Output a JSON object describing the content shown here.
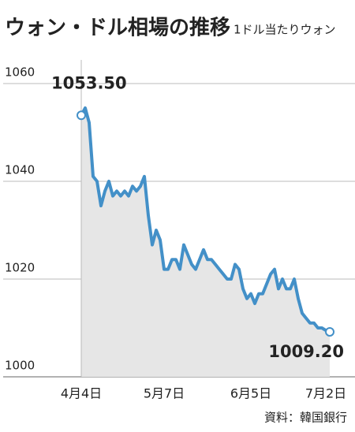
{
  "chart_data": {
    "type": "line",
    "title": "ウォン・ドル相場の推移",
    "subtitle": "1ドル当たりウォン",
    "source": "資料：韓国銀行",
    "categories": [
      "4月4日",
      null,
      null,
      null,
      null,
      null,
      null,
      null,
      null,
      null,
      null,
      null,
      null,
      null,
      null,
      null,
      null,
      null,
      null,
      null,
      null,
      "5月7日",
      null,
      null,
      null,
      null,
      null,
      null,
      null,
      null,
      null,
      null,
      null,
      null,
      null,
      null,
      null,
      null,
      null,
      null,
      null,
      null,
      null,
      "6月5日",
      null,
      null,
      null,
      null,
      null,
      null,
      null,
      null,
      null,
      null,
      null,
      null,
      null,
      null,
      null,
      null,
      null,
      null,
      "7月2日",
      null
    ],
    "series": [
      {
        "color": "#4390c8",
        "values": [
          1053.5,
          1055,
          1052,
          1041,
          1040,
          1035,
          1038,
          1040,
          1037,
          1038,
          1037,
          1038,
          1037,
          1039,
          1038,
          1039,
          1041,
          1033,
          1027,
          1030,
          1028,
          1022,
          1022,
          1024,
          1024,
          1022,
          1027,
          1025,
          1023,
          1022,
          1024,
          1026,
          1024,
          1024,
          1023,
          1022,
          1021,
          1020,
          1020,
          1023,
          1022,
          1018,
          1016,
          1017,
          1015,
          1017,
          1017,
          1019,
          1021,
          1022,
          1018,
          1020,
          1018,
          1018,
          1020,
          1016,
          1013,
          1012,
          1011,
          1011,
          1010,
          1010,
          1009.5,
          1009.2
        ],
        "value_labels": [
          "1053.50",
          null,
          null,
          null,
          null,
          null,
          null,
          null,
          null,
          null,
          null,
          null,
          null,
          null,
          null,
          null,
          null,
          null,
          null,
          null,
          null,
          null,
          null,
          null,
          null,
          null,
          null,
          null,
          null,
          null,
          null,
          null,
          null,
          null,
          null,
          null,
          null,
          null,
          null,
          null,
          null,
          null,
          null,
          null,
          null,
          null,
          null,
          null,
          null,
          null,
          null,
          null,
          null,
          null,
          null,
          null,
          null,
          null,
          null,
          null,
          null,
          null,
          null,
          "1009.20"
        ]
      }
    ],
    "ylim": [
      1000,
      1060
    ],
    "yticks": [
      1000,
      1020,
      1040,
      1060
    ],
    "grid": true
  }
}
